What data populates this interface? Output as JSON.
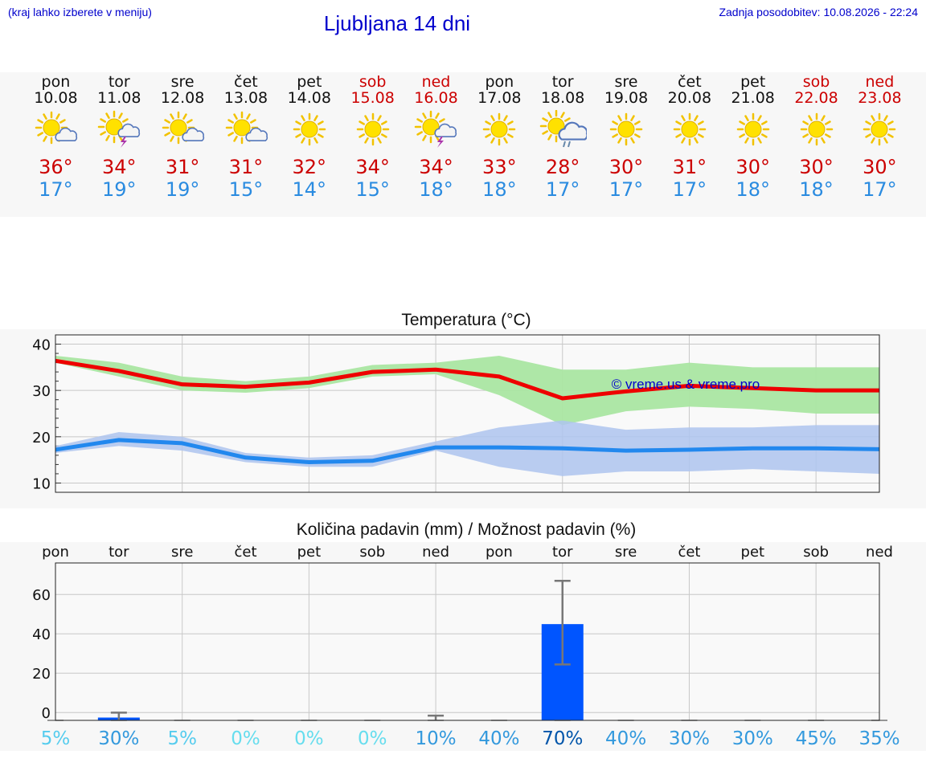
{
  "header": {
    "menu_note": "(kraj lahko izberete v meniju)",
    "title": "Ljubljana 14 dni",
    "updated": "Zadnja posodobitev: 10.08.2026 - 22:24"
  },
  "colors": {
    "max_temp": "#ee0000",
    "min_temp": "#2288ee",
    "max_band": "#aae6a2",
    "min_band": "#aec4ef",
    "precip_bar": "#0055ff",
    "error_bar": "#777777",
    "weekend": "#cc0000",
    "link": "#0000cc"
  },
  "days": [
    {
      "name": "pon",
      "date": "10.08",
      "weekend": false,
      "icon": "sun-cloud-icon",
      "max": "36°",
      "min": "17°"
    },
    {
      "name": "tor",
      "date": "11.08",
      "weekend": false,
      "icon": "sun-thunderstorm-icon",
      "max": "34°",
      "min": "19°"
    },
    {
      "name": "sre",
      "date": "12.08",
      "weekend": false,
      "icon": "sun-cloud-icon",
      "max": "31°",
      "min": "19°"
    },
    {
      "name": "čet",
      "date": "13.08",
      "weekend": false,
      "icon": "sun-cloud-icon",
      "max": "31°",
      "min": "15°"
    },
    {
      "name": "pet",
      "date": "14.08",
      "weekend": false,
      "icon": "sun-icon",
      "max": "32°",
      "min": "14°"
    },
    {
      "name": "sob",
      "date": "15.08",
      "weekend": true,
      "icon": "sun-icon",
      "max": "34°",
      "min": "15°"
    },
    {
      "name": "ned",
      "date": "16.08",
      "weekend": true,
      "icon": "sun-thunderstorm-icon",
      "max": "34°",
      "min": "18°"
    },
    {
      "name": "pon",
      "date": "17.08",
      "weekend": false,
      "icon": "sun-icon",
      "max": "33°",
      "min": "18°"
    },
    {
      "name": "tor",
      "date": "18.08",
      "weekend": false,
      "icon": "sun-rain-icon",
      "max": "28°",
      "min": "17°"
    },
    {
      "name": "sre",
      "date": "19.08",
      "weekend": false,
      "icon": "sun-icon",
      "max": "30°",
      "min": "17°"
    },
    {
      "name": "čet",
      "date": "20.08",
      "weekend": false,
      "icon": "sun-icon",
      "max": "31°",
      "min": "17°"
    },
    {
      "name": "pet",
      "date": "21.08",
      "weekend": false,
      "icon": "sun-icon",
      "max": "30°",
      "min": "18°"
    },
    {
      "name": "sob",
      "date": "22.08",
      "weekend": true,
      "icon": "sun-icon",
      "max": "30°",
      "min": "18°"
    },
    {
      "name": "ned",
      "date": "23.08",
      "weekend": true,
      "icon": "sun-icon",
      "max": "30°",
      "min": "17°"
    }
  ],
  "chart_data": [
    {
      "type": "line",
      "title": "Temperatura (°C)",
      "x": [
        0,
        1,
        2,
        3,
        4,
        5,
        6,
        7,
        8,
        9,
        10,
        11,
        12,
        13
      ],
      "ylim": [
        8,
        42
      ],
      "yticks": [
        10,
        20,
        30,
        40
      ],
      "grid": true,
      "watermark": "© vreme.us & vreme.pro",
      "series": [
        {
          "values": [
            36.4,
            34.2,
            31.3,
            30.8,
            31.7,
            34.0,
            34.5,
            33.0,
            28.3,
            29.8,
            31.0,
            30.5,
            30.0,
            30.0
          ],
          "upper": [
            37.5,
            36.0,
            33.0,
            32.0,
            33.0,
            35.5,
            36.0,
            37.5,
            34.5,
            34.5,
            36.0,
            35.0,
            35.0,
            35.0
          ],
          "lower": [
            36.0,
            33.0,
            30.0,
            29.5,
            30.5,
            33.0,
            33.5,
            29.0,
            22.5,
            25.5,
            26.5,
            26.0,
            25.0,
            25.0
          ]
        },
        {
          "values": [
            17.2,
            19.3,
            18.6,
            15.5,
            14.5,
            14.8,
            17.7,
            17.7,
            17.5,
            17.0,
            17.2,
            17.5,
            17.5,
            17.3
          ],
          "upper": [
            18.0,
            21.0,
            20.0,
            16.5,
            15.5,
            16.0,
            19.0,
            22.0,
            23.5,
            21.5,
            22.0,
            22.0,
            22.5,
            22.5
          ],
          "lower": [
            16.5,
            18.0,
            17.0,
            14.5,
            13.5,
            13.5,
            17.0,
            13.5,
            11.5,
            12.5,
            12.5,
            13.0,
            12.5,
            12.0
          ]
        }
      ]
    },
    {
      "type": "bar",
      "title": "Količina padavin (mm) / Možnost padavin (%)",
      "categories": [
        "pon",
        "tor",
        "sre",
        "čet",
        "pet",
        "sob",
        "ned",
        "pon",
        "tor",
        "sre",
        "čet",
        "pet",
        "sob",
        "ned"
      ],
      "values": [
        0,
        1.5,
        0,
        0,
        0,
        0,
        0.2,
        0,
        49,
        0,
        0,
        0,
        0,
        0
      ],
      "error_high": [
        0,
        4,
        0,
        0,
        0,
        0,
        2.5,
        0,
        71,
        0,
        0,
        0,
        0,
        0
      ],
      "error_low": [
        0,
        0,
        0,
        0,
        0,
        0,
        0,
        0,
        28.5,
        0,
        0,
        0,
        0,
        0
      ],
      "probability": [
        "5%",
        "30%",
        "5%",
        "0%",
        "0%",
        "0%",
        "10%",
        "40%",
        "70%",
        "40%",
        "30%",
        "30%",
        "45%",
        "35%"
      ],
      "probability_colors": [
        "#55ccee",
        "#3399dd",
        "#55ccee",
        "#66ddee",
        "#66ddee",
        "#66ddee",
        "#3399dd",
        "#3399dd",
        "#0055aa",
        "#3399dd",
        "#3399dd",
        "#3399dd",
        "#3399dd",
        "#3399dd"
      ],
      "ylim": [
        -4,
        76
      ],
      "yticks": [
        0,
        20,
        40,
        60
      ],
      "grid": true
    }
  ]
}
